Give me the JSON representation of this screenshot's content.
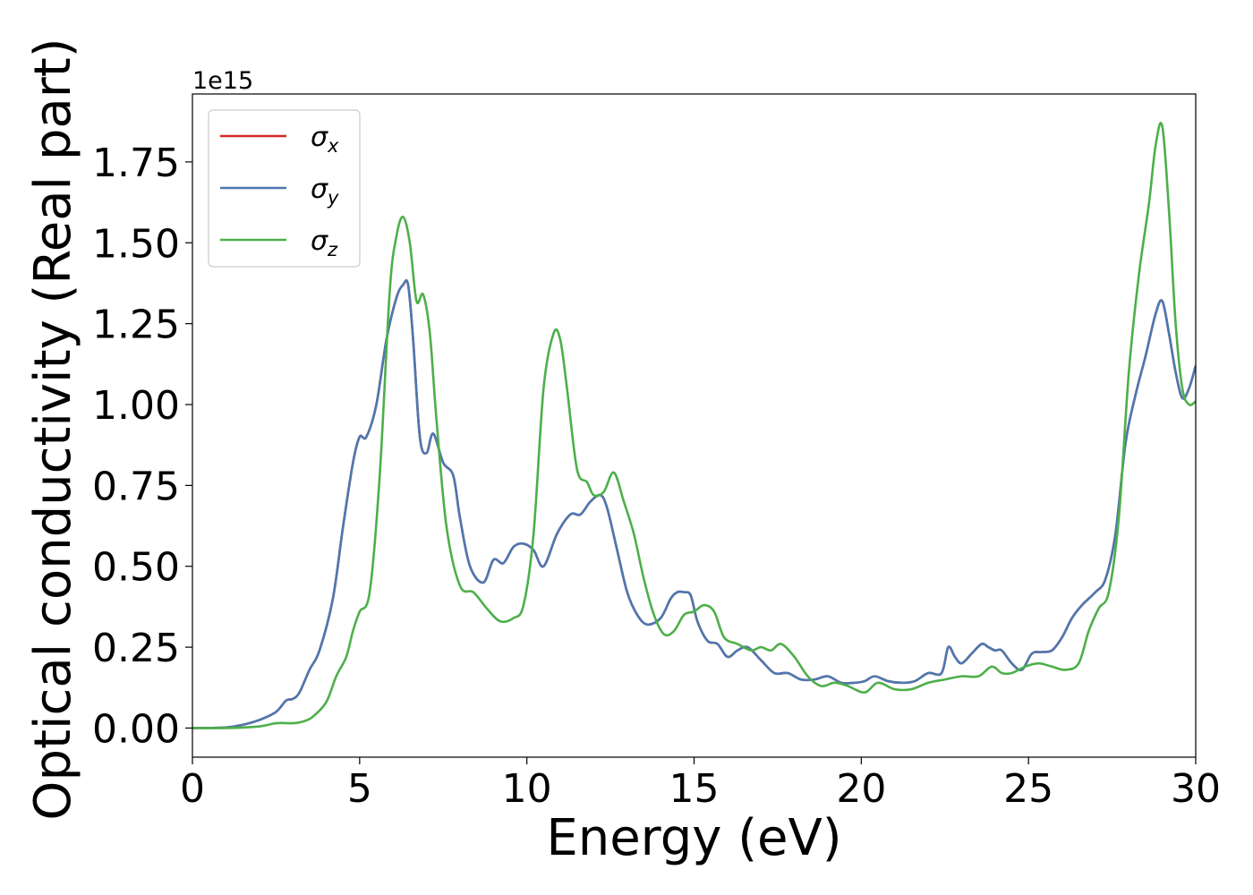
{
  "chart_data": {
    "type": "line",
    "xlabel": "Energy (eV)",
    "ylabel": "Optical conductivity (Real part)",
    "y_offset_label": "1e15",
    "xlim": [
      0,
      30
    ],
    "ylim": [
      -0.09,
      1.96
    ],
    "x_ticks": [
      0,
      5,
      10,
      15,
      20,
      25,
      30
    ],
    "x_tick_labels": [
      "0",
      "5",
      "10",
      "15",
      "20",
      "25",
      "30"
    ],
    "y_ticks": [
      0,
      0.25,
      0.5,
      0.75,
      1.0,
      1.25,
      1.5,
      1.75
    ],
    "y_tick_labels": [
      "0.00",
      "0.25",
      "0.50",
      "0.75",
      "1.00",
      "1.25",
      "1.50",
      "1.75"
    ],
    "grid": false,
    "legend_position": "top-left",
    "series": [
      {
        "name": "σ",
        "subscript": "x",
        "color": "#d62728",
        "x": [
          0,
          1,
          1.5,
          2,
          2.5,
          2.8,
          3.0,
          3.2,
          3.5,
          3.8,
          4.2,
          4.5,
          4.8,
          5.0,
          5.2,
          5.5,
          5.8,
          6.1,
          6.3,
          6.45,
          6.6,
          6.8,
          7.0,
          7.2,
          7.5,
          7.8,
          8.0,
          8.3,
          8.7,
          9.0,
          9.3,
          9.6,
          9.9,
          10.2,
          10.5,
          10.9,
          11.3,
          11.6,
          11.9,
          12.2,
          12.4,
          12.7,
          13.0,
          13.3,
          13.6,
          14.0,
          14.3,
          14.5,
          14.7,
          14.9,
          15.1,
          15.4,
          15.7,
          16.0,
          16.3,
          16.6,
          17.0,
          17.4,
          17.8,
          18.2,
          18.6,
          19.0,
          19.4,
          19.8,
          20.1,
          20.4,
          20.8,
          21.2,
          21.6,
          22.0,
          22.4,
          22.6,
          22.8,
          23.0,
          23.3,
          23.6,
          23.8,
          24.0,
          24.2,
          24.5,
          24.8,
          25.1,
          25.4,
          25.7,
          26.0,
          26.3,
          26.6,
          27.0,
          27.3,
          27.6,
          27.9,
          28.2,
          28.5,
          28.8,
          29.0,
          29.2,
          29.4,
          29.6,
          29.8,
          30.0
        ],
        "values": [
          0,
          0.002,
          0.01,
          0.025,
          0.05,
          0.085,
          0.09,
          0.11,
          0.18,
          0.24,
          0.4,
          0.62,
          0.82,
          0.9,
          0.9,
          1.0,
          1.2,
          1.33,
          1.37,
          1.37,
          1.2,
          0.9,
          0.85,
          0.91,
          0.82,
          0.78,
          0.65,
          0.5,
          0.45,
          0.52,
          0.51,
          0.56,
          0.57,
          0.55,
          0.5,
          0.6,
          0.66,
          0.66,
          0.7,
          0.72,
          0.68,
          0.55,
          0.42,
          0.35,
          0.32,
          0.34,
          0.4,
          0.42,
          0.42,
          0.41,
          0.33,
          0.27,
          0.26,
          0.22,
          0.24,
          0.25,
          0.21,
          0.17,
          0.17,
          0.15,
          0.15,
          0.16,
          0.14,
          0.14,
          0.145,
          0.16,
          0.145,
          0.14,
          0.145,
          0.17,
          0.17,
          0.25,
          0.22,
          0.2,
          0.23,
          0.26,
          0.25,
          0.24,
          0.24,
          0.2,
          0.18,
          0.23,
          0.235,
          0.24,
          0.28,
          0.34,
          0.38,
          0.42,
          0.46,
          0.6,
          0.88,
          1.03,
          1.15,
          1.28,
          1.32,
          1.22,
          1.1,
          1.02,
          1.05,
          1.12
        ]
      },
      {
        "name": "σ",
        "subscript": "y",
        "color": "#4c78b0",
        "x": [
          0,
          1,
          1.5,
          2,
          2.5,
          2.8,
          3.0,
          3.2,
          3.5,
          3.8,
          4.2,
          4.5,
          4.8,
          5.0,
          5.2,
          5.5,
          5.8,
          6.1,
          6.3,
          6.45,
          6.6,
          6.8,
          7.0,
          7.2,
          7.5,
          7.8,
          8.0,
          8.3,
          8.7,
          9.0,
          9.3,
          9.6,
          9.9,
          10.2,
          10.5,
          10.9,
          11.3,
          11.6,
          11.9,
          12.2,
          12.4,
          12.7,
          13.0,
          13.3,
          13.6,
          14.0,
          14.3,
          14.5,
          14.7,
          14.9,
          15.1,
          15.4,
          15.7,
          16.0,
          16.3,
          16.6,
          17.0,
          17.4,
          17.8,
          18.2,
          18.6,
          19.0,
          19.4,
          19.8,
          20.1,
          20.4,
          20.8,
          21.2,
          21.6,
          22.0,
          22.4,
          22.6,
          22.8,
          23.0,
          23.3,
          23.6,
          23.8,
          24.0,
          24.2,
          24.5,
          24.8,
          25.1,
          25.4,
          25.7,
          26.0,
          26.3,
          26.6,
          27.0,
          27.3,
          27.6,
          27.9,
          28.2,
          28.5,
          28.8,
          29.0,
          29.2,
          29.4,
          29.6,
          29.8,
          30.0
        ],
        "values": [
          0,
          0.002,
          0.01,
          0.025,
          0.05,
          0.085,
          0.09,
          0.11,
          0.18,
          0.24,
          0.4,
          0.62,
          0.82,
          0.9,
          0.9,
          1.0,
          1.2,
          1.33,
          1.37,
          1.37,
          1.2,
          0.9,
          0.85,
          0.91,
          0.82,
          0.78,
          0.65,
          0.5,
          0.45,
          0.52,
          0.51,
          0.56,
          0.57,
          0.55,
          0.5,
          0.6,
          0.66,
          0.66,
          0.7,
          0.72,
          0.68,
          0.55,
          0.42,
          0.35,
          0.32,
          0.34,
          0.4,
          0.42,
          0.42,
          0.41,
          0.33,
          0.27,
          0.26,
          0.22,
          0.24,
          0.25,
          0.21,
          0.17,
          0.17,
          0.15,
          0.15,
          0.16,
          0.14,
          0.14,
          0.145,
          0.16,
          0.145,
          0.14,
          0.145,
          0.17,
          0.17,
          0.25,
          0.22,
          0.2,
          0.23,
          0.26,
          0.25,
          0.24,
          0.24,
          0.2,
          0.18,
          0.23,
          0.235,
          0.24,
          0.28,
          0.34,
          0.38,
          0.42,
          0.46,
          0.6,
          0.88,
          1.03,
          1.15,
          1.28,
          1.32,
          1.22,
          1.1,
          1.02,
          1.05,
          1.12
        ]
      },
      {
        "name": "σ",
        "subscript": "z",
        "color": "#4daf4a",
        "x": [
          0,
          1,
          2,
          2.5,
          3.0,
          3.3,
          3.6,
          4.0,
          4.3,
          4.6,
          4.8,
          5.0,
          5.3,
          5.6,
          5.9,
          6.1,
          6.3,
          6.5,
          6.7,
          6.9,
          7.1,
          7.3,
          7.6,
          8.0,
          8.4,
          8.8,
          9.2,
          9.6,
          9.9,
          10.2,
          10.5,
          10.8,
          11.0,
          11.2,
          11.5,
          11.8,
          12.0,
          12.3,
          12.6,
          12.9,
          13.2,
          13.5,
          13.8,
          14.1,
          14.4,
          14.7,
          15.0,
          15.3,
          15.6,
          15.9,
          16.3,
          16.7,
          17.0,
          17.3,
          17.6,
          18.0,
          18.4,
          18.8,
          19.2,
          19.6,
          20.1,
          20.5,
          21.0,
          21.5,
          22.0,
          22.5,
          23.0,
          23.5,
          23.9,
          24.2,
          24.5,
          24.9,
          25.3,
          25.7,
          26.1,
          26.5,
          26.8,
          27.1,
          27.4,
          27.7,
          28.0,
          28.3,
          28.6,
          28.8,
          29.0,
          29.2,
          29.4,
          29.6,
          29.8,
          30.0
        ],
        "values": [
          0,
          0,
          0.005,
          0.015,
          0.015,
          0.02,
          0.035,
          0.08,
          0.16,
          0.22,
          0.3,
          0.36,
          0.42,
          0.78,
          1.35,
          1.52,
          1.58,
          1.5,
          1.32,
          1.34,
          1.22,
          0.95,
          0.62,
          0.44,
          0.42,
          0.37,
          0.33,
          0.34,
          0.38,
          0.6,
          1.05,
          1.22,
          1.2,
          1.05,
          0.8,
          0.76,
          0.72,
          0.73,
          0.79,
          0.7,
          0.6,
          0.46,
          0.35,
          0.29,
          0.3,
          0.35,
          0.36,
          0.38,
          0.36,
          0.28,
          0.26,
          0.24,
          0.25,
          0.24,
          0.26,
          0.22,
          0.16,
          0.13,
          0.14,
          0.13,
          0.11,
          0.14,
          0.12,
          0.12,
          0.14,
          0.15,
          0.16,
          0.16,
          0.19,
          0.17,
          0.17,
          0.19,
          0.2,
          0.19,
          0.18,
          0.2,
          0.3,
          0.37,
          0.42,
          0.65,
          1.1,
          1.4,
          1.62,
          1.8,
          1.86,
          1.6,
          1.25,
          1.05,
          1.0,
          1.01
        ]
      }
    ]
  }
}
